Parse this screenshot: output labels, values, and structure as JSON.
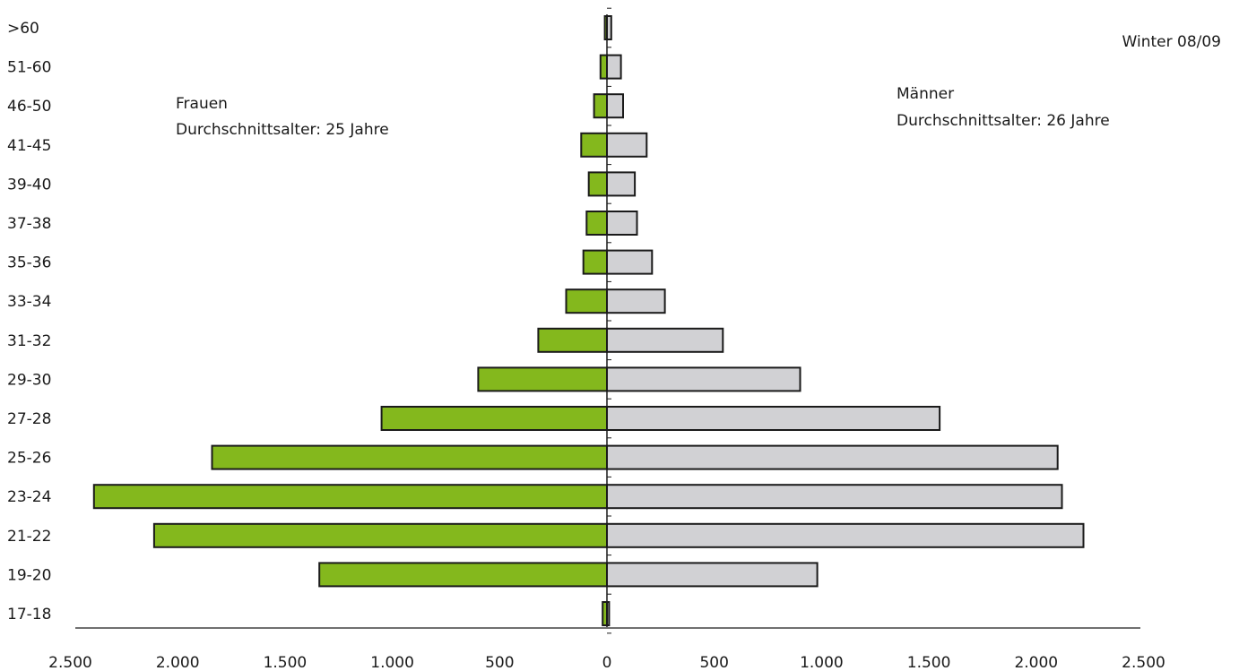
{
  "chart_data": {
    "type": "bar",
    "orientation": "horizontal",
    "subtype": "population-pyramid",
    "title": "Winter 08/09",
    "categories": [
      ">60",
      "51-60",
      "46-50",
      "41-45",
      "39-40",
      "37-38",
      "35-36",
      "33-34",
      "31-32",
      "29-30",
      "27-28",
      "25-26",
      "23-24",
      "21-22",
      "19-20",
      "17-18"
    ],
    "series": [
      {
        "name": "Frauen",
        "side": "left",
        "color": "#84b81d",
        "values": [
          10,
          30,
          60,
          120,
          85,
          95,
          110,
          190,
          320,
          600,
          1050,
          1840,
          2390,
          2110,
          1340,
          20
        ]
      },
      {
        "name": "Männer",
        "side": "right",
        "color": "#d1d1d4",
        "values": [
          20,
          65,
          75,
          185,
          130,
          140,
          210,
          270,
          540,
          900,
          1550,
          2100,
          2120,
          2220,
          980,
          10
        ]
      }
    ],
    "annotations": {
      "left_label": "Frauen",
      "left_note": "Durchschnittsalter: 25 Jahre",
      "right_label": "Männer",
      "right_note": "Durchschnittsalter: 26 Jahre"
    },
    "xticks": [
      -2500,
      -2000,
      -1500,
      -1000,
      -500,
      0,
      500,
      1000,
      1500,
      2000,
      2500
    ],
    "xtick_labels": [
      "2.500",
      "2.000",
      "1.500",
      "1.000",
      "500",
      "0",
      "500",
      "1.000",
      "1.500",
      "2.000",
      "2.500"
    ],
    "xlim": [
      -2500,
      2500
    ],
    "xlabel": "",
    "ylabel": "",
    "grid": false,
    "legend": "none"
  }
}
